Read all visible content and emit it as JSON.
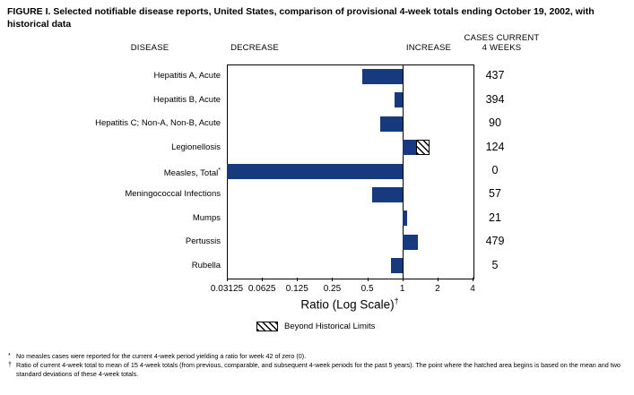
{
  "title": "FIGURE I. Selected notifiable disease reports, United States, comparison of provisional 4-week totals ending October 19, 2002, with historical data",
  "headers": {
    "disease": "DISEASE",
    "decrease": "DECREASE",
    "increase": "INCREASE",
    "cases_line1": "CASES CURRENT",
    "cases_line2": "4 WEEKS"
  },
  "chart_data": {
    "type": "bar",
    "orientation": "horizontal",
    "scale": "log",
    "xlabel": "Ratio (Log Scale)",
    "xlabel_superscript": "†",
    "xlim": [
      0.03125,
      4
    ],
    "baseline": 1,
    "ticks": [
      0.03125,
      0.0625,
      0.125,
      0.25,
      0.5,
      1,
      2,
      4
    ],
    "tick_labels": [
      "0.03125",
      "0.0625",
      "0.125",
      "0.25",
      "0.5",
      "1",
      "2",
      "4"
    ],
    "legend": {
      "label": "Beyond Historical Limits"
    },
    "rows": [
      {
        "disease": "Hepatitis A, Acute",
        "ratio": 0.45,
        "cases": "437",
        "beyond_limits": false
      },
      {
        "disease": "Hepatitis B, Acute",
        "ratio": 0.85,
        "cases": "394",
        "beyond_limits": false
      },
      {
        "disease": "Hepatitis C; Non-A, Non-B, Acute",
        "ratio": 0.65,
        "cases": "90",
        "beyond_limits": false
      },
      {
        "disease": "Legionellosis",
        "ratio": 1.7,
        "hatch_start": 1.3,
        "cases": "124",
        "beyond_limits": true
      },
      {
        "disease": "Measles, Total",
        "marker": "*",
        "ratio": 0,
        "cases": "0",
        "beyond_limits": false
      },
      {
        "disease": "Meningococcal Infections",
        "ratio": 0.55,
        "cases": "57",
        "beyond_limits": false
      },
      {
        "disease": "Mumps",
        "ratio": 1.1,
        "cases": "21",
        "beyond_limits": false
      },
      {
        "disease": "Pertussis",
        "ratio": 1.35,
        "cases": "479",
        "beyond_limits": false
      },
      {
        "disease": "Rubella",
        "ratio": 0.8,
        "cases": "5",
        "beyond_limits": false
      }
    ]
  },
  "colors": {
    "bar": "#17397e",
    "axis": "#000000"
  },
  "footnotes": [
    {
      "marker": "*",
      "text": "No measles cases were reported for the current 4-week period yielding a ratio for week 42 of zero (0)."
    },
    {
      "marker": "†",
      "text": "Ratio of current 4-week total to mean of 15 4-week totals (from previous, comparable, and subsequent 4-week periods for the past 5 years). The point where the hatched area begins is based on the mean and two standard deviations of these 4-week totals."
    }
  ]
}
